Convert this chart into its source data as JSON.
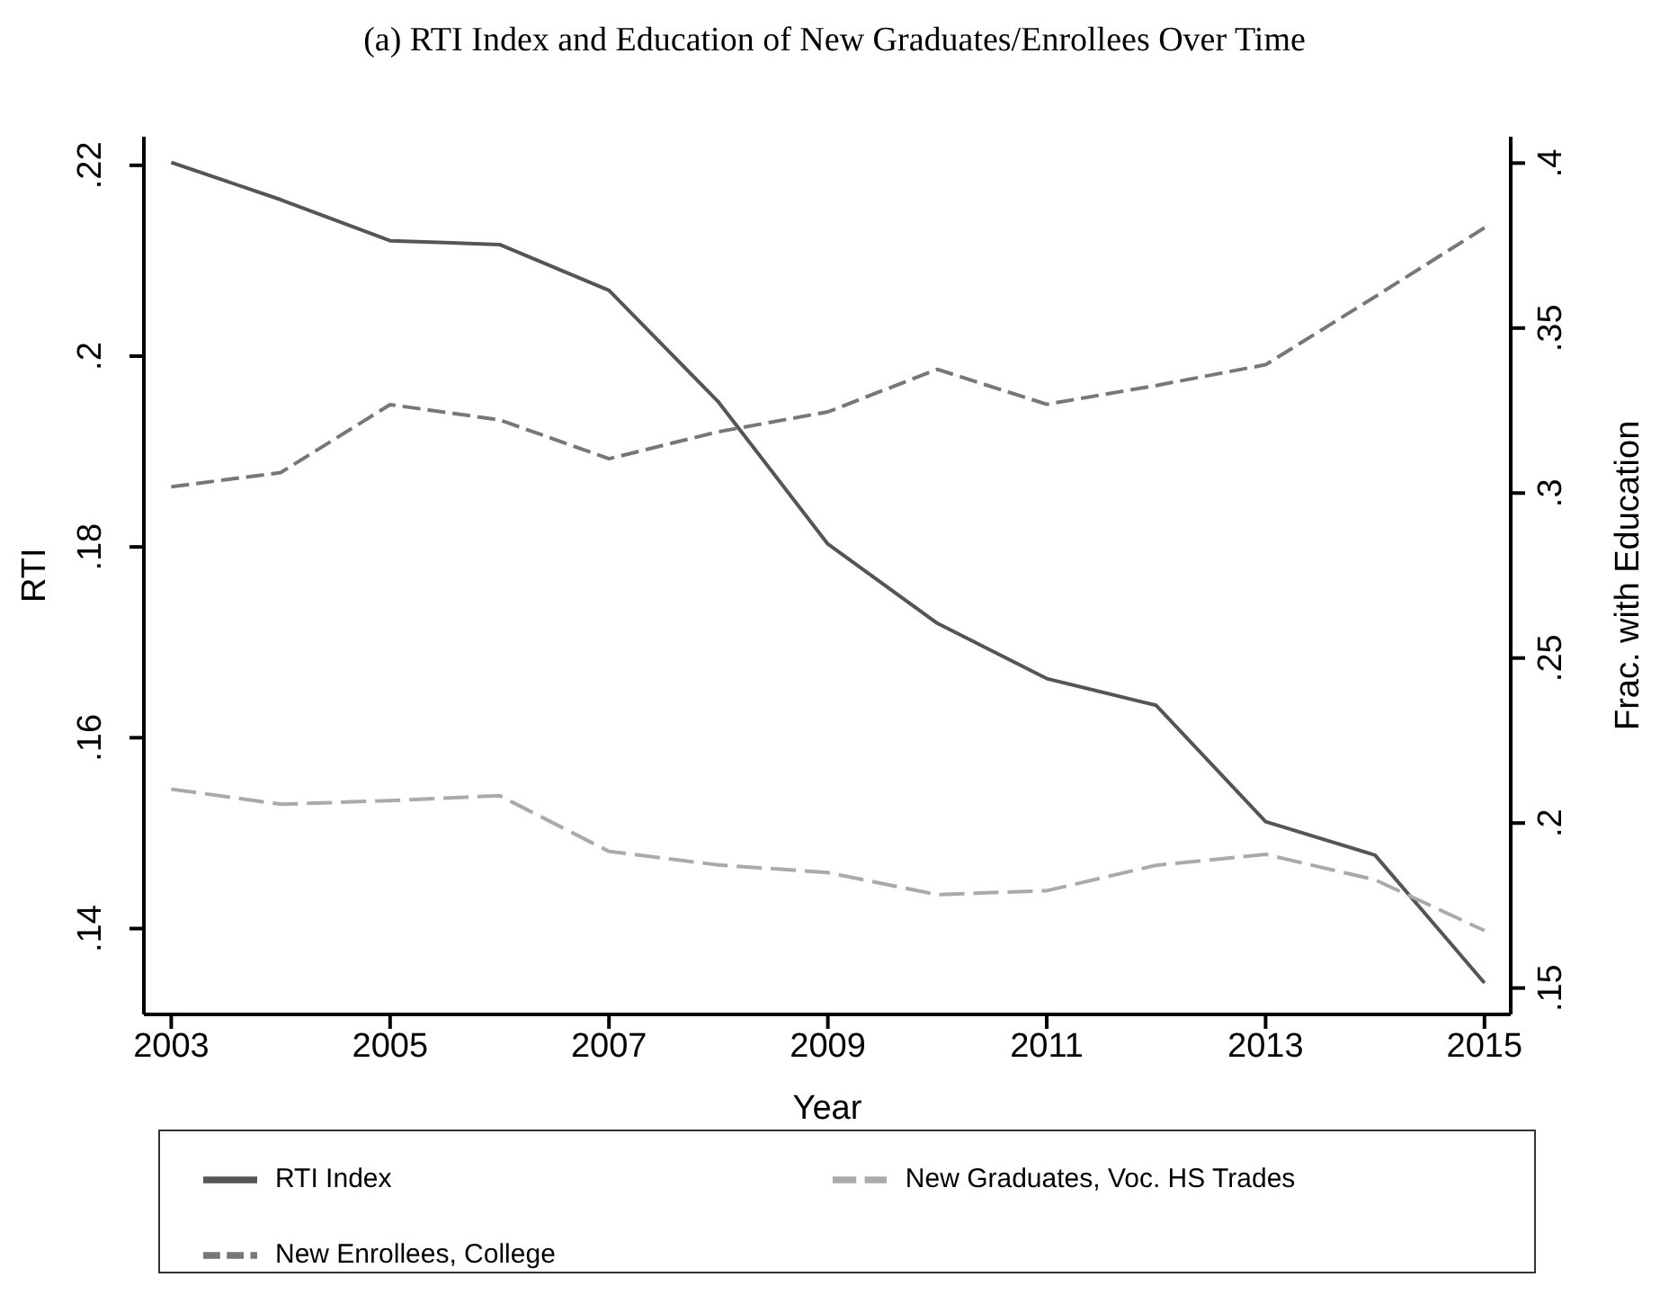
{
  "chart_data": {
    "type": "line",
    "title": "(a) RTI Index and Education of New Graduates/Enrollees Over Time",
    "xlabel": "Year",
    "ylabel": "RTI",
    "y2label": "Frac. with Education",
    "x": [
      2003,
      2004,
      2005,
      2006,
      2007,
      2008,
      2009,
      2010,
      2011,
      2012,
      2013,
      2014,
      2015
    ],
    "series": [
      {
        "name": "RTI Index",
        "color": "#555555",
        "line_style": "solid",
        "values": [
          0.2203,
          0.2164,
          0.2121,
          0.2117,
          0.2069,
          0.1952,
          0.1803,
          0.172,
          0.1662,
          0.1634,
          0.1512,
          0.1477,
          0.1343
        ]
      },
      {
        "name": "New Graduates, Voc. HS Trades",
        "color": "#aaaaaa",
        "line_style": "dashed",
        "axis": "y2",
        "values": [
          0.2103,
          0.2057,
          0.2068,
          0.2083,
          0.1914,
          0.1873,
          0.185,
          0.1783,
          0.1795,
          0.1872,
          0.1905,
          0.1828,
          0.1674
        ]
      },
      {
        "name": "New Enrollees, College",
        "color": "#777777",
        "line_style": "dashed",
        "axis": "y2",
        "values": [
          0.3019,
          0.3062,
          0.3268,
          0.3222,
          0.3104,
          0.3186,
          0.3246,
          0.3375,
          0.3269,
          0.3326,
          0.3389,
          0.3595,
          0.3804
        ]
      }
    ],
    "xlim": [
      2002.75,
      2015.24
    ],
    "xticks": [
      2003,
      2005,
      2007,
      2009,
      2011,
      2013,
      2015
    ],
    "ylim": [
      0.131,
      0.223
    ],
    "yticks": [
      {
        "value": 0.14,
        "label": ".14"
      },
      {
        "value": 0.16,
        "label": ".16"
      },
      {
        "value": 0.18,
        "label": ".18"
      },
      {
        "value": 0.2,
        "label": ".2"
      },
      {
        "value": 0.22,
        "label": ".22"
      }
    ],
    "y2lim": [
      0.142,
      0.408
    ],
    "y2ticks": [
      {
        "value": 0.15,
        "label": ".15"
      },
      {
        "value": 0.2,
        "label": ".2"
      },
      {
        "value": 0.25,
        "label": ".25"
      },
      {
        "value": 0.3,
        "label": ".3"
      },
      {
        "value": 0.35,
        "label": ".35"
      },
      {
        "value": 0.4,
        "label": ".4"
      }
    ],
    "grid": false,
    "legend": "bottom",
    "marker": "none"
  }
}
